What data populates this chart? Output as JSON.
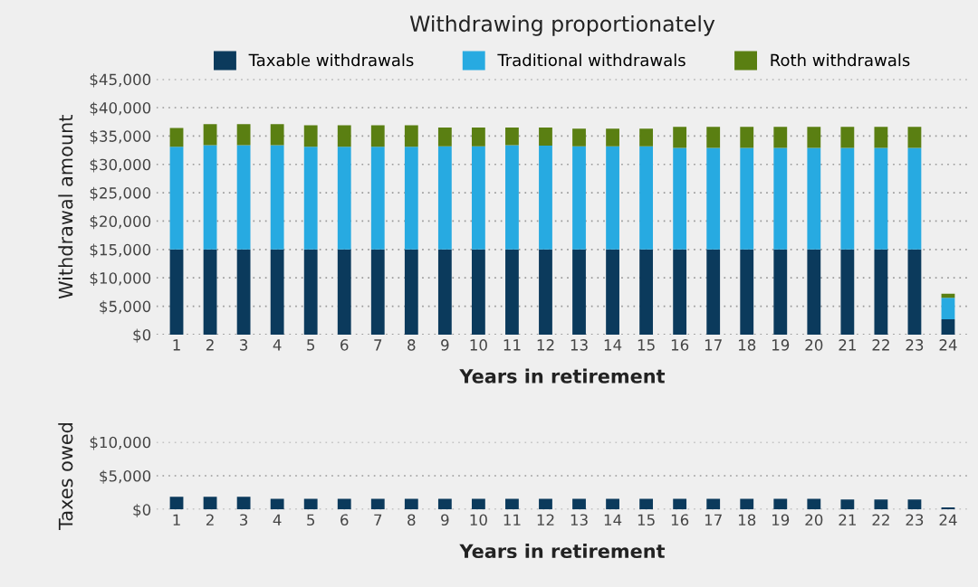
{
  "chart_data": [
    {
      "type": "bar",
      "title": "Withdrawing proportionately",
      "xlabel": "Years in retirement",
      "ylabel": "Withdrawal amount",
      "stacked": true,
      "legend": "top",
      "grid": "y",
      "categories": [
        "1",
        "2",
        "3",
        "4",
        "5",
        "6",
        "7",
        "8",
        "9",
        "10",
        "11",
        "12",
        "13",
        "14",
        "15",
        "16",
        "17",
        "18",
        "19",
        "20",
        "21",
        "22",
        "23",
        "24"
      ],
      "series": [
        {
          "name": "Taxable withdrawals",
          "color": "#0b3a5c",
          "values": [
            15000,
            15000,
            15000,
            15000,
            15000,
            15000,
            15000,
            15000,
            15000,
            15000,
            15000,
            15000,
            15000,
            15000,
            15000,
            15000,
            15000,
            15000,
            15000,
            15000,
            15000,
            15000,
            15000,
            2700
          ]
        },
        {
          "name": "Traditional withdrawals",
          "color": "#27aae1",
          "values": [
            18100,
            18400,
            18400,
            18400,
            18100,
            18100,
            18100,
            18100,
            18200,
            18200,
            18400,
            18300,
            18200,
            18200,
            18200,
            17900,
            17900,
            17900,
            17900,
            17900,
            17900,
            17900,
            17900,
            3800
          ]
        },
        {
          "name": "Roth withdrawals",
          "color": "#5a7f12",
          "values": [
            3300,
            3700,
            3700,
            3700,
            3800,
            3800,
            3800,
            3800,
            3300,
            3300,
            3100,
            3200,
            3100,
            3100,
            3100,
            3700,
            3700,
            3700,
            3700,
            3700,
            3700,
            3700,
            3700,
            700
          ]
        }
      ],
      "ylim": [
        0,
        45000
      ],
      "yticks": [
        {
          "value": 0,
          "label": "$0"
        },
        {
          "value": 5000,
          "label": "$5,000"
        },
        {
          "value": 10000,
          "label": "$10,000"
        },
        {
          "value": 15000,
          "label": "$15,000"
        },
        {
          "value": 20000,
          "label": "$20,000"
        },
        {
          "value": 25000,
          "label": "$25,000"
        },
        {
          "value": 30000,
          "label": "$30,000"
        },
        {
          "value": 35000,
          "label": "$35,000"
        },
        {
          "value": 40000,
          "label": "$40,000"
        },
        {
          "value": 45000,
          "label": "$45,000"
        }
      ]
    },
    {
      "type": "bar",
      "xlabel": "Years in retirement",
      "ylabel": "Taxes owed",
      "grid": "y",
      "categories": [
        "1",
        "2",
        "3",
        "4",
        "5",
        "6",
        "7",
        "8",
        "9",
        "10",
        "11",
        "12",
        "13",
        "14",
        "15",
        "16",
        "17",
        "18",
        "19",
        "20",
        "21",
        "22",
        "23",
        "24"
      ],
      "series": [
        {
          "color": "#0b3a5c",
          "values": [
            1900,
            1900,
            1900,
            1600,
            1600,
            1600,
            1600,
            1600,
            1600,
            1600,
            1600,
            1600,
            1600,
            1600,
            1600,
            1600,
            1600,
            1600,
            1600,
            1600,
            1500,
            1500,
            1500,
            300
          ]
        }
      ],
      "ylim": [
        0,
        10000
      ],
      "yticks": [
        {
          "value": 0,
          "label": "$0"
        },
        {
          "value": 5000,
          "label": "$5,000"
        },
        {
          "value": 10000,
          "label": "$10,000"
        }
      ]
    }
  ]
}
